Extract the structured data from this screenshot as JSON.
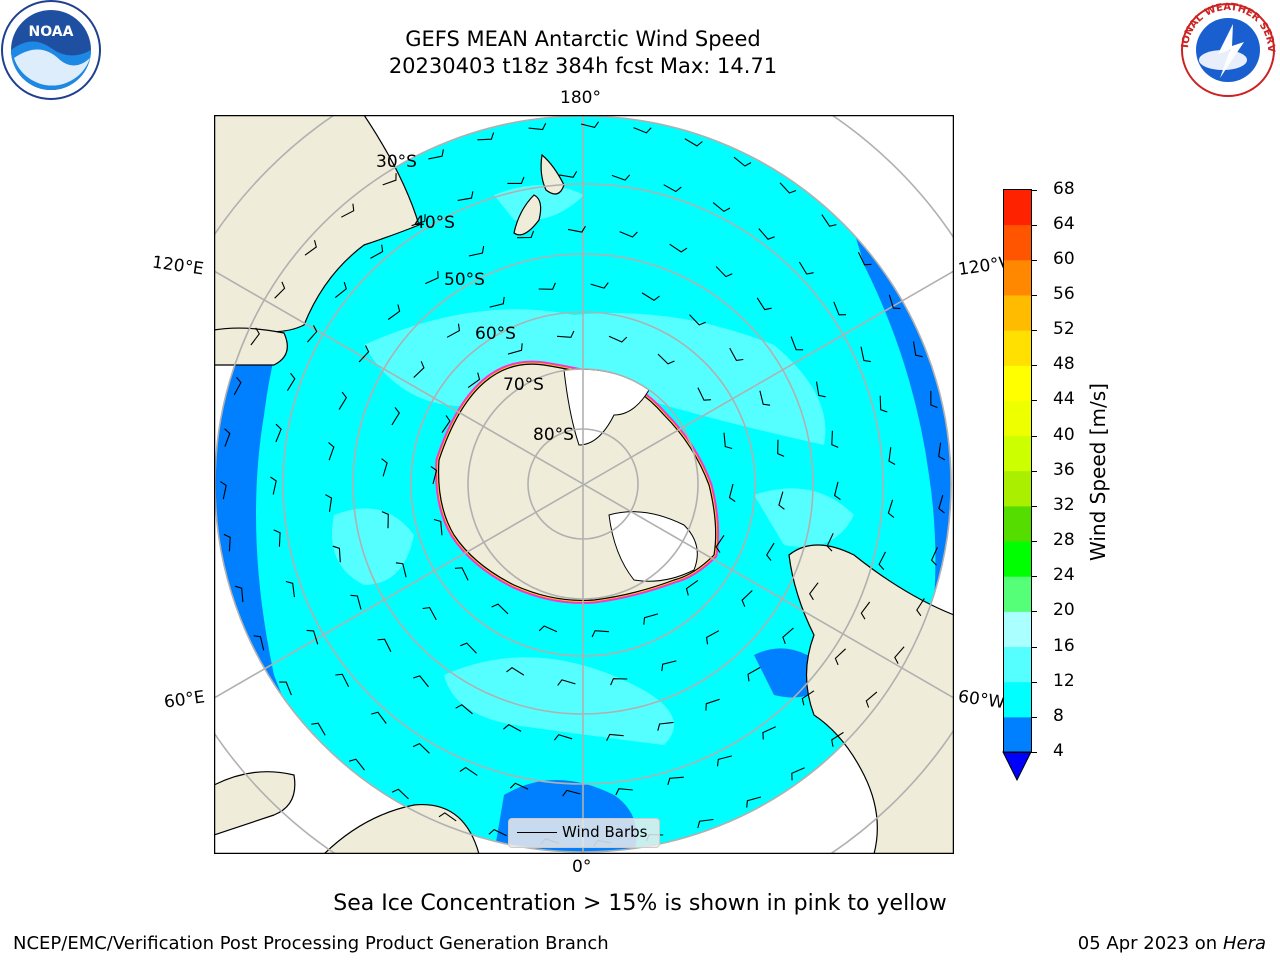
{
  "title": {
    "line1": "GEFS MEAN Antarctic Wind Speed",
    "line2": "20230403 t18z 384h fcst   Max: 14.71"
  },
  "map": {
    "projection": "south-polar-stereographic",
    "longitude_labels": {
      "top": "180°",
      "bottom": "0°",
      "upper_left": "120°E",
      "upper_right": "120°W",
      "lower_left": "60°E",
      "lower_right": "60°W"
    },
    "latitude_labels": [
      "30°S",
      "40°S",
      "50°S",
      "60°S",
      "70°S",
      "80°S"
    ],
    "colors": {
      "land": "#efecd9",
      "ocean_low": "#0080ff",
      "ocean_8_12": "#00ffff",
      "ocean_12_16": "#55ffff",
      "ice_land": "#ffffff",
      "sea_ice_pink": "#ff33cc",
      "sea_ice_yellow": "#ffcc00",
      "grid": "#b0b0b0"
    },
    "legend_label": "Wind Barbs"
  },
  "colorbar": {
    "label": "Wind Speed [m/s]",
    "ticks": [
      "4",
      "8",
      "12",
      "16",
      "20",
      "24",
      "28",
      "32",
      "36",
      "40",
      "44",
      "48",
      "52",
      "56",
      "60",
      "64",
      "68"
    ],
    "colors": [
      "#0080ff",
      "#00ffff",
      "#55ffff",
      "#aaffff",
      "#55ff77",
      "#00ff00",
      "#55dd00",
      "#aaee00",
      "#ccff00",
      "#eeff00",
      "#ffff00",
      "#ffe000",
      "#ffbb00",
      "#ff8800",
      "#ff5500",
      "#ff2200",
      "#ff0000"
    ],
    "extend_color": "#0000ff"
  },
  "caption": "Sea Ice Concentration > 15% is shown in pink to yellow",
  "footer": {
    "left": "NCEP/EMC/Verification Post Processing Product Generation Branch",
    "right_date": "05 Apr 2023 on ",
    "right_host": "Hera"
  },
  "logos": {
    "left": "NOAA",
    "right_outer": "NATIONAL WEATHER SERVICE"
  }
}
